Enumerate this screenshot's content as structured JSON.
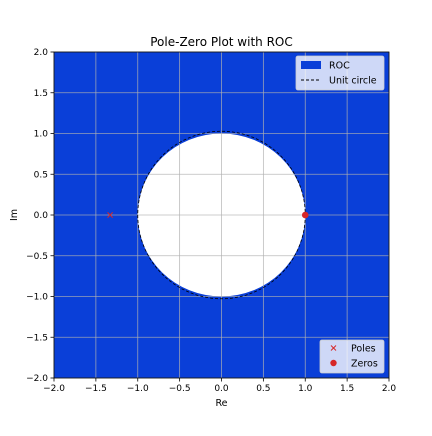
{
  "chart_data": {
    "type": "scatter",
    "title": "Pole-Zero Plot with ROC",
    "xlabel": "Re",
    "ylabel": "Im",
    "xlim": [
      -2.0,
      2.0
    ],
    "ylim": [
      -2.0,
      2.0
    ],
    "xticks": [
      -2.0,
      -1.5,
      -1.0,
      -0.5,
      0.0,
      0.5,
      1.0,
      1.5,
      2.0
    ],
    "yticks": [
      -2.0,
      -1.5,
      -1.0,
      -0.5,
      0.0,
      0.5,
      1.0,
      1.5,
      2.0
    ],
    "xtick_labels": [
      "−2.0",
      "−1.5",
      "−1.0",
      "−0.5",
      "0.0",
      "0.5",
      "1.0",
      "1.5",
      "2.0"
    ],
    "ytick_labels": [
      "−2.0",
      "−1.5",
      "−1.0",
      "−0.5",
      "0.0",
      "0.5",
      "1.0",
      "1.5",
      "2.0"
    ],
    "grid": true,
    "roc": {
      "label": "ROC",
      "inner_radius": 1.0,
      "color": "#0a3fd8",
      "region": "|z| > 1"
    },
    "unit_circle": {
      "label": "Unit circle",
      "radius": 1.0,
      "style": "dashed",
      "color": "#000000"
    },
    "poles": {
      "label": "Poles",
      "marker": "x",
      "color": "#d62728",
      "points": [
        [
          -1.33,
          0.0
        ]
      ]
    },
    "zeros": {
      "label": "Zeros",
      "marker": "o",
      "color": "#d62728",
      "points": [
        [
          1.0,
          0.0
        ]
      ]
    },
    "legend_top": {
      "placement": "upper right",
      "entries": [
        "ROC",
        "Unit circle"
      ]
    },
    "legend_bottom": {
      "placement": "lower right",
      "entries": [
        "Poles",
        "Zeros"
      ]
    }
  }
}
